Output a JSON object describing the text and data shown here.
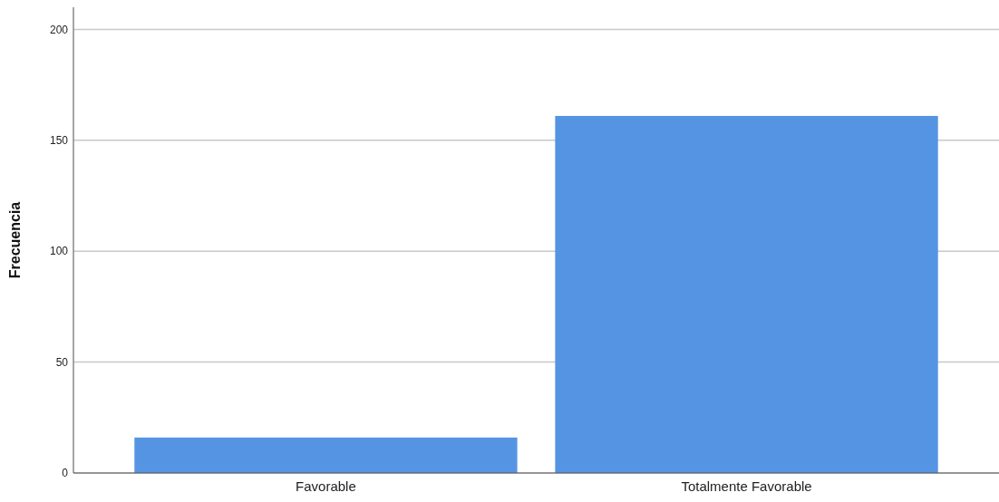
{
  "chart_data": {
    "type": "bar",
    "categories": [
      "Favorable",
      "Totalmente Favorable"
    ],
    "values": [
      16,
      161
    ],
    "color": "#5594e2",
    "ylabel": "Frecuencia",
    "ylim": [
      0,
      210
    ],
    "yticks": [
      0,
      50,
      100,
      150,
      200
    ],
    "grid": "y"
  }
}
